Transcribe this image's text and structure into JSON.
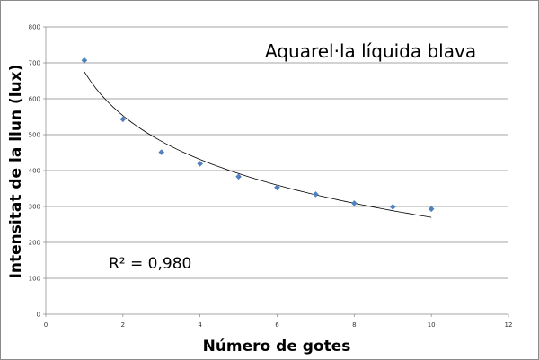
{
  "chart_data": {
    "type": "scatter",
    "title": "Aquarel·la líquida blava",
    "xlabel": "Número de gotes",
    "ylabel": "Intensitat de la llun (lux)",
    "xlim": [
      0,
      12
    ],
    "ylim": [
      0,
      800
    ],
    "xticks": [
      "0",
      "2",
      "4",
      "6",
      "8",
      "10",
      "12"
    ],
    "yticks": [
      "0",
      "100",
      "200",
      "300",
      "400",
      "500",
      "600",
      "700",
      "800"
    ],
    "grid": "horizontal",
    "x": [
      1,
      2,
      3,
      4,
      5,
      6,
      7,
      8,
      9,
      10
    ],
    "y": [
      707,
      543,
      451,
      419,
      383,
      353,
      334,
      309,
      299,
      293
    ],
    "trendline": {
      "type": "logarithmic",
      "a": -176,
      "b": 675,
      "x_range": [
        1,
        10
      ]
    },
    "annotation": "R² = 0,980",
    "colors": {
      "marker": "#4f81bd",
      "trendline": "#000000",
      "grid": "#868686"
    }
  }
}
